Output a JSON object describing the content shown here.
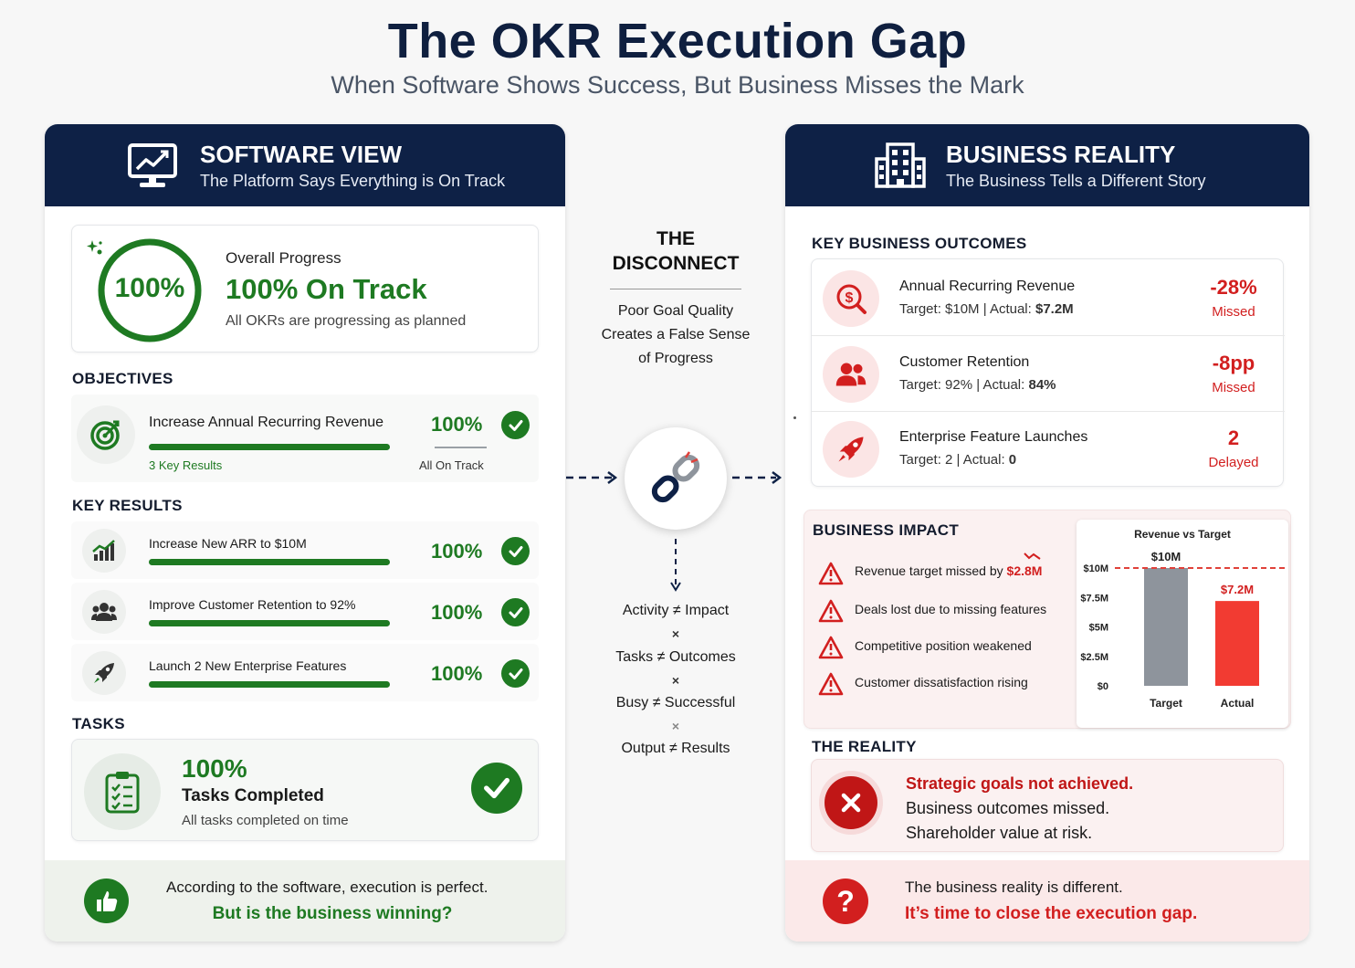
{
  "header": {
    "title": "The OKR Execution Gap",
    "subtitle": "When Software Shows Success, But Business Misses the Mark"
  },
  "software_view": {
    "title": "SOFTWARE VIEW",
    "subtitle": "The Platform Says Everything is On Track",
    "overall": {
      "ring_value": "100%",
      "label": "Overall Progress",
      "status": "100% On Track",
      "note": "All OKRs are progressing as planned",
      "progress": 1.0
    },
    "objectives_label": "OBJECTIVES",
    "objective": {
      "title": "Increase Annual Recurring Revenue",
      "key_results": "3 Key Results",
      "percent": "100%",
      "status": "All On Track",
      "progress": 1.0
    },
    "key_results_label": "KEY RESULTS",
    "key_results": [
      {
        "title": "Increase New ARR to $10M",
        "percent": "100%",
        "progress": 1.0,
        "icon": "chart-icon"
      },
      {
        "title": "Improve Customer Retention to 92%",
        "percent": "100%",
        "progress": 1.0,
        "icon": "users-icon"
      },
      {
        "title": "Launch 2 New Enterprise Features",
        "percent": "100%",
        "progress": 1.0,
        "icon": "rocket-icon"
      }
    ],
    "tasks_label": "TASKS",
    "tasks": {
      "percent": "100%",
      "title": "Tasks Completed",
      "note": "All tasks completed on time"
    },
    "footer": {
      "line1": "According to the software, execution is perfect.",
      "line2": "But is the business winning?"
    }
  },
  "disconnect": {
    "title_line1": "THE",
    "title_line2": "DISCONNECT",
    "desc_line1": "Poor Goal Quality",
    "desc_line2": "Creates a False Sense",
    "desc_line3": "of Progress",
    "equations": [
      "Activity ≠ Impact",
      "Tasks ≠ Outcomes",
      "Busy ≠ Successful",
      "Output ≠ Results"
    ],
    "separator": "×"
  },
  "business_reality": {
    "title": "BUSINESS REALITY",
    "subtitle": "The Business Tells a Different Story",
    "outcomes_label": "KEY BUSINESS OUTCOMES",
    "outcomes": [
      {
        "title": "Annual Recurring Revenue",
        "target_label": "Target: $10M | Actual: ",
        "actual": "$7.2M",
        "value": "-28%",
        "status": "Missed",
        "icon": "dollar-search-icon"
      },
      {
        "title": "Customer Retention",
        "target_label": "Target: 92% | Actual: ",
        "actual": "84%",
        "value": "-8pp",
        "status": "Missed",
        "icon": "users-icon"
      },
      {
        "title": "Enterprise Feature Launches",
        "target_label": "Target: 2 | Actual: ",
        "actual": "0",
        "value": "2",
        "status": "Delayed",
        "icon": "rocket-icon"
      }
    ],
    "impact_label": "BUSINESS IMPACT",
    "impacts": [
      {
        "text": "Revenue target missed by ",
        "highlight": "$2.8M"
      },
      {
        "text": "Deals lost due to missing features",
        "highlight": ""
      },
      {
        "text": "Competitive position weakened",
        "highlight": ""
      },
      {
        "text": "Customer dissatisfaction rising",
        "highlight": ""
      }
    ],
    "reality_label": "THE REALITY",
    "reality": {
      "line1": "Strategic goals not achieved.",
      "line2": "Business outcomes missed.",
      "line3": "Shareholder value at risk."
    },
    "footer": {
      "line1": "The business reality is different.",
      "line2": "It’s time to close the execution gap."
    }
  },
  "colors": {
    "navy": "#0e2146",
    "green": "#1e7a22",
    "red": "#d21f1f",
    "target_bar": "#8e949c",
    "actual_bar": "#f23b32"
  },
  "chart_data": {
    "type": "bar",
    "title": "Revenue vs Target",
    "categories": [
      "Target",
      "Actual"
    ],
    "values": [
      10,
      7.2
    ],
    "value_labels": [
      "$10M",
      "$7.2M"
    ],
    "unit": "$M",
    "ylim": [
      0,
      10
    ],
    "yticks": [
      0,
      2.5,
      5,
      7.5,
      10
    ],
    "ytick_labels": [
      "$0",
      "$2.5M",
      "$5M",
      "$7.5M",
      "$10M"
    ],
    "target_line": 10,
    "xlabel": "",
    "ylabel": ""
  }
}
